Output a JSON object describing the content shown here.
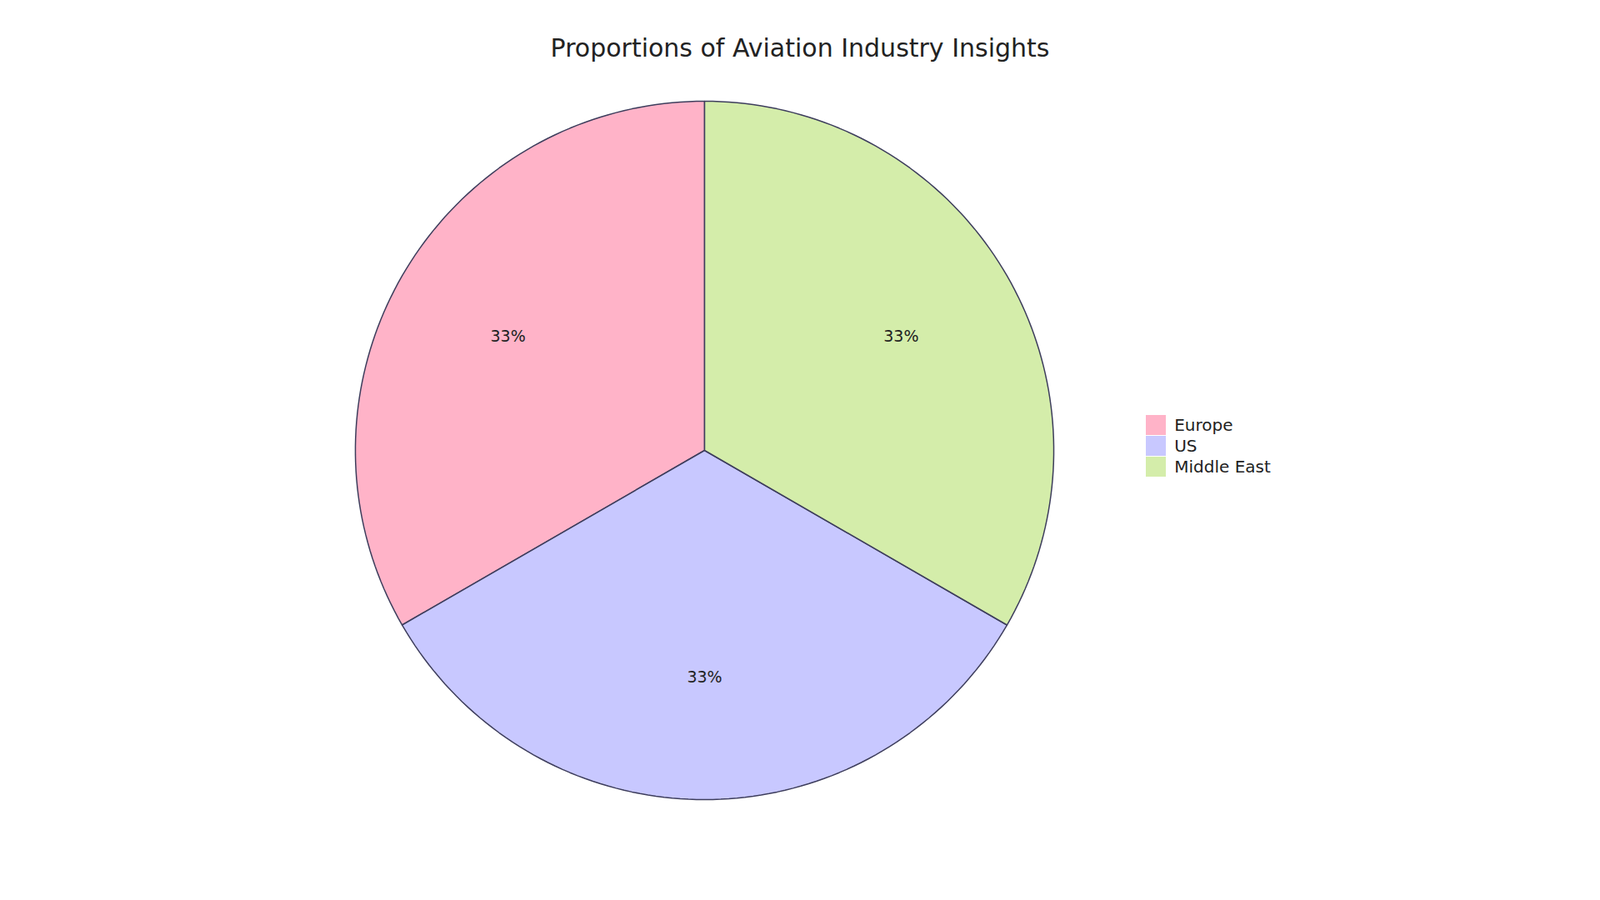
{
  "chart_data": {
    "type": "pie",
    "title": "Proportions of Aviation Industry Insights",
    "categories": [
      "Europe",
      "US",
      "Middle East"
    ],
    "values": [
      33,
      33,
      33
    ],
    "value_labels": [
      "33%",
      "33%",
      "33%"
    ],
    "colors": [
      "#FFB3C8",
      "#C8C8FF",
      "#D4EDAA"
    ],
    "data_labels": true,
    "legend": "right"
  }
}
